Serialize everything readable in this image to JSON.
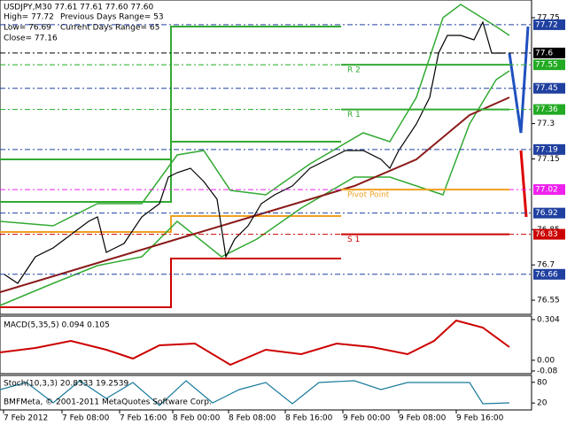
{
  "header": {
    "symbol_line": "USDJPY,M30  77.61 77.61 77.60 77.60",
    "high": "High= 77.72",
    "low": "Low= 76.69",
    "close": "Close= 77.16",
    "prev_range": "Previous Days Range= 53",
    "cur_range": "Current Days Range= 65"
  },
  "price_axis": {
    "ylim": [
      76.49,
      77.825
    ],
    "ticks": [
      77.75,
      77.3,
      77.15,
      76.85,
      76.7,
      76.55
    ]
  },
  "price_markers": [
    {
      "value": 77.72,
      "color": "#2040a0"
    },
    {
      "value": 77.6,
      "color": "#000000"
    },
    {
      "value": 77.55,
      "color": "#22aa22"
    },
    {
      "value": 77.45,
      "color": "#2040a0"
    },
    {
      "value": 77.36,
      "color": "#22aa22"
    },
    {
      "value": 77.19,
      "color": "#2040a0"
    },
    {
      "value": 77.02,
      "color": "#ee22ee"
    },
    {
      "value": 76.92,
      "color": "#2040a0"
    },
    {
      "value": 76.83,
      "color": "#cc0000"
    },
    {
      "value": 76.66,
      "color": "#2040a0"
    }
  ],
  "levels": [
    {
      "label": "R 2",
      "value": 77.55,
      "color": "#33aa33"
    },
    {
      "label": "R 1",
      "value": 77.36,
      "color": "#33aa33"
    },
    {
      "label": "Pivot Point",
      "value": 77.02,
      "color": "#f0a020"
    },
    {
      "label": "S 1",
      "value": 76.83,
      "color": "#cc0000"
    }
  ],
  "time_axis": [
    "7 Feb 2012",
    "7 Feb 08:00",
    "7 Feb 16:00",
    "8 Feb 00:00",
    "8 Feb 08:00",
    "8 Feb 16:00",
    "9 Feb 00:00",
    "9 Feb 08:00",
    "9 Feb 16:00"
  ],
  "macd": {
    "label": "MACD(5,35,5) 0.094 0.105",
    "ylim": [
      -0.1,
      0.33
    ],
    "ticks": [
      0.304,
      {
        "value": 0,
        "label": "0.00"
      },
      -0.08
    ]
  },
  "stoch": {
    "label": "Stoch(10,3,3) 20.8333 19.2539",
    "ylim": [
      0,
      100
    ],
    "ticks": [
      80,
      20
    ]
  },
  "footer": "BMFMeta, © 2001-2011 MetaQuotes Software Corp."
}
